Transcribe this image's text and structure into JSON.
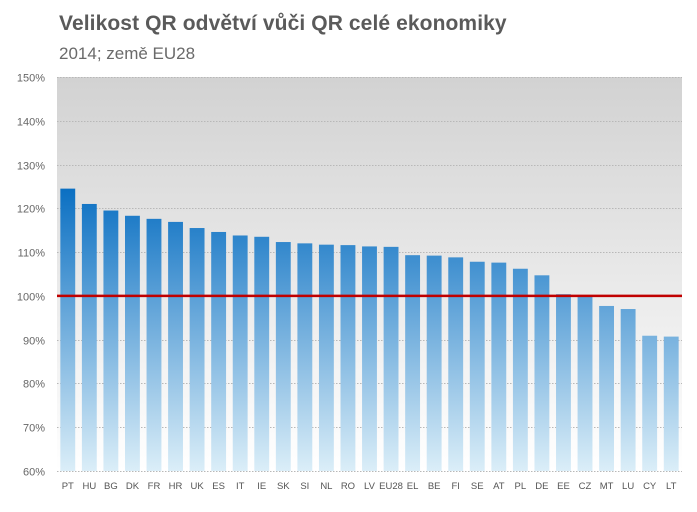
{
  "chart_data": {
    "type": "bar",
    "title": "Velikost QR odvětví vůči QR celé ekonomiky",
    "subtitle": "2014; země EU28",
    "xlabel": "",
    "ylabel": "",
    "categories": [
      "PT",
      "HU",
      "BG",
      "DK",
      "FR",
      "HR",
      "UK",
      "ES",
      "IT",
      "IE",
      "SK",
      "SI",
      "NL",
      "RO",
      "LV",
      "EU28",
      "EL",
      "BE",
      "FI",
      "SE",
      "AT",
      "PL",
      "DE",
      "EE",
      "CZ",
      "MT",
      "LU",
      "CY",
      "LT"
    ],
    "values": [
      124.5,
      121.0,
      119.5,
      118.3,
      117.6,
      116.9,
      115.5,
      114.6,
      113.8,
      113.5,
      112.3,
      112.0,
      111.7,
      111.6,
      111.3,
      111.2,
      109.3,
      109.2,
      108.8,
      107.8,
      107.6,
      106.2,
      104.7,
      100.4,
      99.9,
      97.7,
      97.0,
      90.9,
      90.7
    ],
    "ylim": [
      60,
      150
    ],
    "yticks": [
      60,
      70,
      80,
      90,
      100,
      110,
      120,
      130,
      140,
      150
    ],
    "ytick_labels": [
      "60%",
      "70%",
      "80%",
      "90%",
      "100%",
      "110%",
      "120%",
      "130%",
      "140%",
      "150%"
    ],
    "reference_line": 100,
    "grid": true,
    "legend": "none",
    "colors": {
      "bar_top": "#0a6fc2",
      "bar_bottom": "#dbeef8",
      "reference_line": "#c00000",
      "plot_bg_top": "#d2d2d2",
      "plot_bg_bottom": "#ffffff",
      "gridline": "#b8b8b8",
      "axis_text": "#666666",
      "title": "#5a5a5a"
    }
  }
}
